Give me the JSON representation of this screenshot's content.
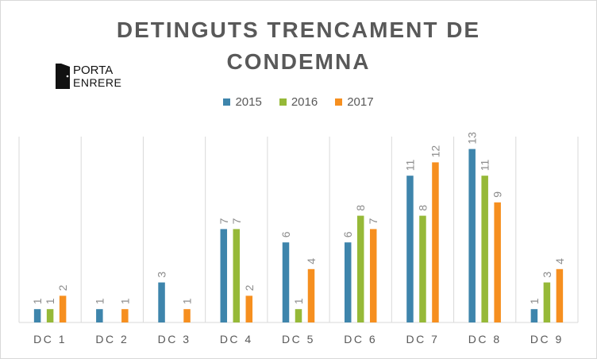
{
  "title_line1": "DETINGUTS TRENCAMENT DE",
  "title_line2": "CONDEMNA",
  "logo": {
    "text_top": "PORTA",
    "text_bottom": "ENRERE"
  },
  "colors": {
    "2015": "#3e85ac",
    "2016": "#96b938",
    "2017": "#f68f1f",
    "grid": "#d9d9d9",
    "text": "#595959",
    "label": "#8c8c8c"
  },
  "chart_data": {
    "type": "bar",
    "title": "DETINGUTS TRENCAMENT DE CONDEMNA",
    "categories": [
      "DC 1",
      "DC 2",
      "DC 3",
      "DC 4",
      "DC 5",
      "DC 6",
      "DC 7",
      "DC 8",
      "DC 9"
    ],
    "series": [
      {
        "name": "2015",
        "values": [
          1,
          1,
          3,
          7,
          6,
          6,
          11,
          13,
          1
        ]
      },
      {
        "name": "2016",
        "values": [
          1,
          null,
          null,
          7,
          1,
          8,
          8,
          11,
          3
        ]
      },
      {
        "name": "2017",
        "values": [
          2,
          1,
          1,
          2,
          4,
          7,
          12,
          9,
          4
        ]
      }
    ],
    "ylim": [
      0,
      14
    ],
    "grid": "vertical category separators",
    "legend": "top-center"
  }
}
